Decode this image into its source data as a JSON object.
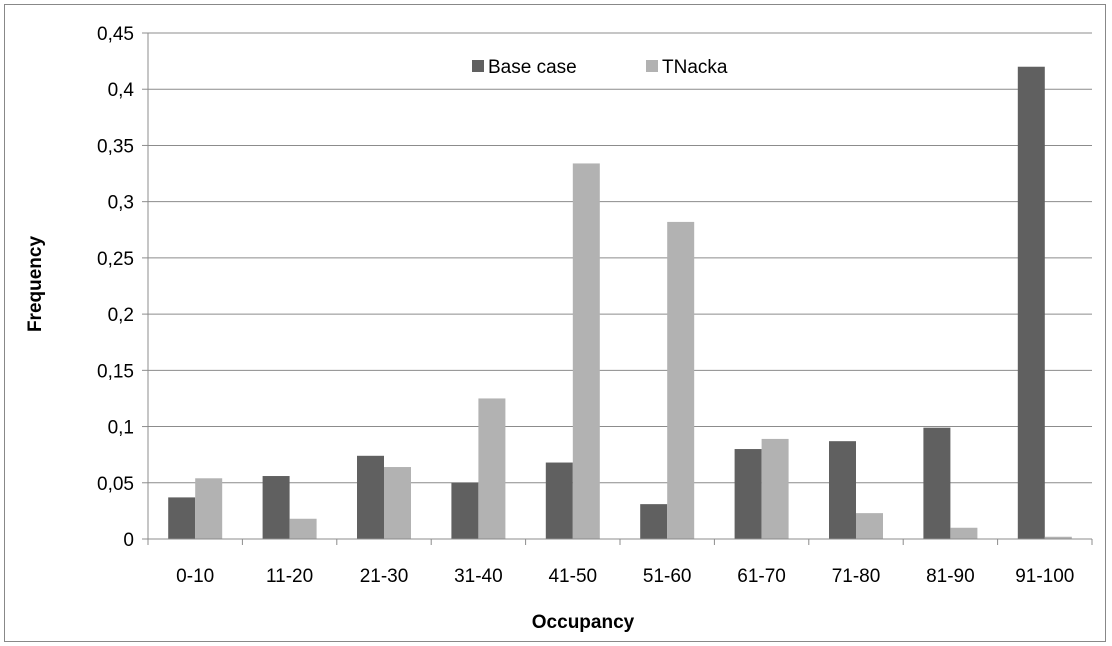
{
  "chart_data": {
    "type": "bar",
    "xlabel": "Occupancy",
    "ylabel": "Frequency",
    "categories": [
      "0-10",
      "11-20",
      "21-30",
      "31-40",
      "41-50",
      "51-60",
      "61-70",
      "71-80",
      "81-90",
      "91-100"
    ],
    "series": [
      {
        "name": "Base case",
        "color": "#606060",
        "values": [
          0.037,
          0.056,
          0.074,
          0.05,
          0.068,
          0.031,
          0.08,
          0.087,
          0.099,
          0.42
        ]
      },
      {
        "name": "TNacka",
        "color": "#b2b2b2",
        "values": [
          0.054,
          0.018,
          0.064,
          0.125,
          0.334,
          0.282,
          0.089,
          0.023,
          0.01,
          0.002
        ]
      }
    ],
    "ylim": [
      0,
      0.45
    ],
    "yticks": [
      "0",
      "0,05",
      "0,1",
      "0,15",
      "0,2",
      "0,25",
      "0,3",
      "0,35",
      "0,4",
      "0,45"
    ],
    "grid": true,
    "legend_position": "top-center"
  }
}
